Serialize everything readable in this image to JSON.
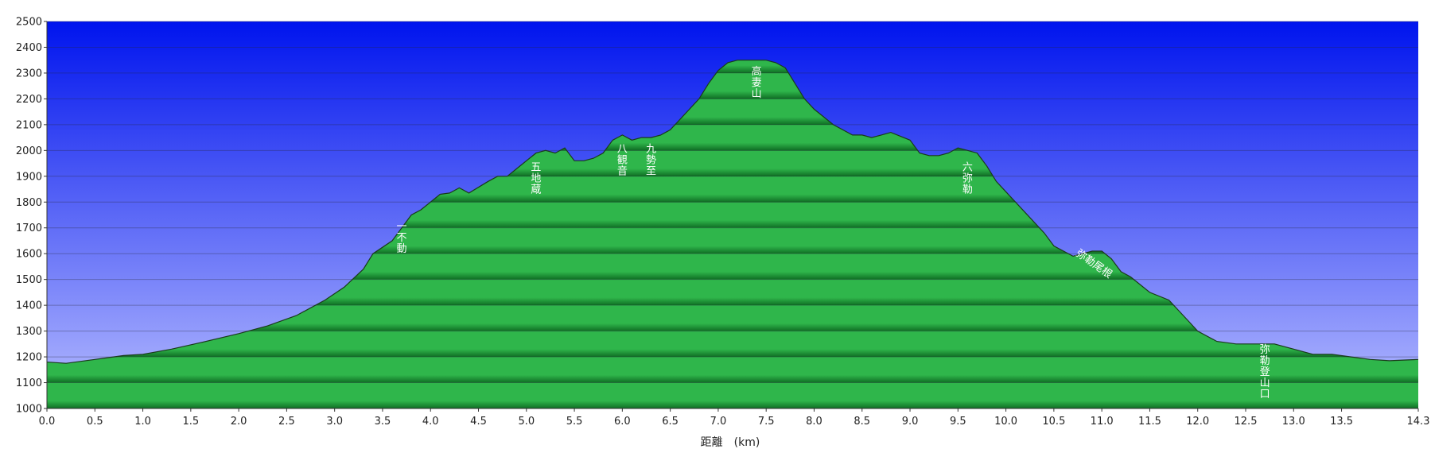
{
  "chart_data": {
    "type": "area",
    "title": "",
    "xlabel": "距離　(km)",
    "ylabel": "",
    "xlim": [
      0.0,
      14.3
    ],
    "ylim": [
      1000,
      2500
    ],
    "grid": true,
    "x_ticks": [
      "0.0",
      "0.5",
      "1.0",
      "1.5",
      "2.0",
      "2.5",
      "3.0",
      "3.5",
      "4.0",
      "4.5",
      "5.0",
      "5.5",
      "6.0",
      "6.5",
      "7.0",
      "7.5",
      "8.0",
      "8.5",
      "9.0",
      "9.5",
      "10.0",
      "10.5",
      "11.0",
      "11.5",
      "12.0",
      "12.5",
      "13.0",
      "13.5",
      "14.3"
    ],
    "y_ticks": [
      "1000",
      "1100",
      "1200",
      "1300",
      "1400",
      "1500",
      "1600",
      "1700",
      "1800",
      "1900",
      "2000",
      "2100",
      "2200",
      "2300",
      "2400",
      "2500"
    ],
    "series": [
      {
        "x": [
          0.0,
          0.2,
          0.5,
          0.8,
          1.0,
          1.3,
          1.6,
          2.0,
          2.3,
          2.6,
          2.9,
          3.1,
          3.3,
          3.4,
          3.6,
          3.7,
          3.8,
          3.9,
          4.1,
          4.2,
          4.3,
          4.4,
          4.6,
          4.7,
          4.8,
          4.9,
          5.0,
          5.1,
          5.2,
          5.3,
          5.4,
          5.5,
          5.6,
          5.7,
          5.8,
          5.9,
          6.0,
          6.1,
          6.2,
          6.3,
          6.4,
          6.5,
          6.6,
          6.8,
          6.9,
          7.0,
          7.1,
          7.2,
          7.3,
          7.4,
          7.5,
          7.6,
          7.7,
          7.8,
          7.9,
          8.0,
          8.2,
          8.4,
          8.5,
          8.6,
          8.7,
          8.8,
          9.0,
          9.1,
          9.2,
          9.3,
          9.4,
          9.5,
          9.6,
          9.7,
          9.8,
          9.9,
          10.0,
          10.2,
          10.4,
          10.5,
          10.7,
          10.8,
          10.9,
          11.0,
          11.1,
          11.2,
          11.3,
          11.5,
          11.7,
          11.8,
          11.9,
          12.0,
          12.2,
          12.4,
          12.5,
          12.7,
          12.8,
          12.9,
          13.0,
          13.2,
          13.4,
          13.6,
          13.8,
          14.0,
          14.3
        ],
        "values": [
          1180,
          1175,
          1190,
          1205,
          1210,
          1230,
          1255,
          1290,
          1320,
          1360,
          1420,
          1470,
          1540,
          1600,
          1650,
          1700,
          1750,
          1770,
          1830,
          1835,
          1855,
          1835,
          1880,
          1900,
          1900,
          1930,
          1960,
          1990,
          2000,
          1990,
          2010,
          1960,
          1960,
          1970,
          1990,
          2040,
          2060,
          2040,
          2050,
          2050,
          2060,
          2080,
          2120,
          2200,
          2260,
          2310,
          2340,
          2350,
          2350,
          2350,
          2350,
          2340,
          2320,
          2260,
          2200,
          2160,
          2100,
          2060,
          2060,
          2050,
          2060,
          2070,
          2040,
          1990,
          1980,
          1980,
          1990,
          2010,
          2000,
          1990,
          1940,
          1880,
          1840,
          1760,
          1680,
          1630,
          1590,
          1600,
          1610,
          1610,
          1580,
          1530,
          1510,
          1450,
          1420,
          1380,
          1340,
          1300,
          1260,
          1250,
          1250,
          1250,
          1250,
          1240,
          1230,
          1210,
          1210,
          1200,
          1190,
          1185,
          1190
        ]
      }
    ],
    "annotations": [
      {
        "text": "一不動",
        "x": 3.7,
        "y": 1650
      },
      {
        "text": "五地蔵",
        "x": 5.1,
        "y": 1880
      },
      {
        "text": "八観音",
        "x": 6.0,
        "y": 1950
      },
      {
        "text": "九勢至",
        "x": 6.3,
        "y": 1950
      },
      {
        "text": "高妻山",
        "x": 7.4,
        "y": 2250
      },
      {
        "text": "六弥勒",
        "x": 9.6,
        "y": 1880
      },
      {
        "text": "弥勒尾根",
        "x": 10.9,
        "y": 1550,
        "rotate": 35
      },
      {
        "text": "弥勒登山口",
        "x": 12.7,
        "y": 1130
      }
    ],
    "colors": {
      "sky_top": "#0014ee",
      "sky_bottom": "#b6bcff",
      "terrain_light": "#2fb64b",
      "terrain_dark": "#0f6e24",
      "outline": "#1a3a1a"
    }
  }
}
